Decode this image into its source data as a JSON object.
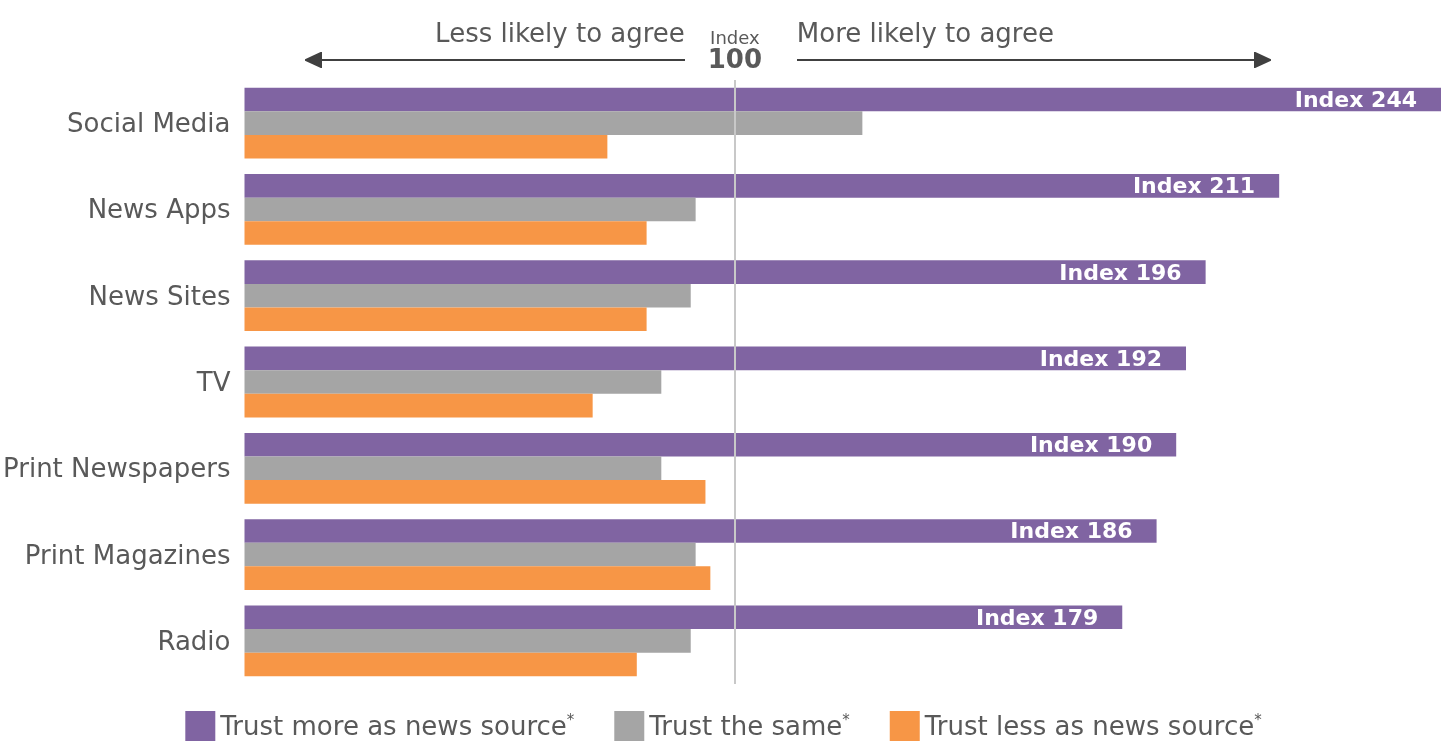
{
  "chart_data": {
    "type": "bar",
    "orientation": "horizontal",
    "categories": [
      "Social Media",
      "News Apps",
      "News Sites",
      "TV",
      "Print Newspapers",
      "Print Magazines",
      "Radio"
    ],
    "series": [
      {
        "name": "Trust more as news source$^{*}$",
        "color": "#8064a2",
        "values": [
          244,
          211,
          196,
          192,
          190,
          186,
          179
        ],
        "value_labels": [
          "Index 244",
          "Index 211",
          "Index 196",
          "Index 192",
          "Index 190",
          "Index 186",
          "Index 179"
        ]
      },
      {
        "name": "Trust the same$^{*}$",
        "color": "#a5a5a5",
        "values": [
          126,
          92,
          91,
          85,
          85,
          92,
          91
        ]
      },
      {
        "name": "Trust less as news source$^{*}$",
        "color": "#f79646",
        "values": [
          74,
          82,
          82,
          71,
          94,
          95,
          80
        ]
      }
    ],
    "xlim": [
      0,
      244
    ],
    "ref_lines": [
      {
        "axis": "x",
        "value": 100,
        "label": "Index 100",
        "color": "#c8c8c8"
      }
    ],
    "annotations": [
      "Less likely to agree",
      "More likely to agree"
    ],
    "tick_labels": "y",
    "grid": false,
    "legend": "bottom"
  }
}
